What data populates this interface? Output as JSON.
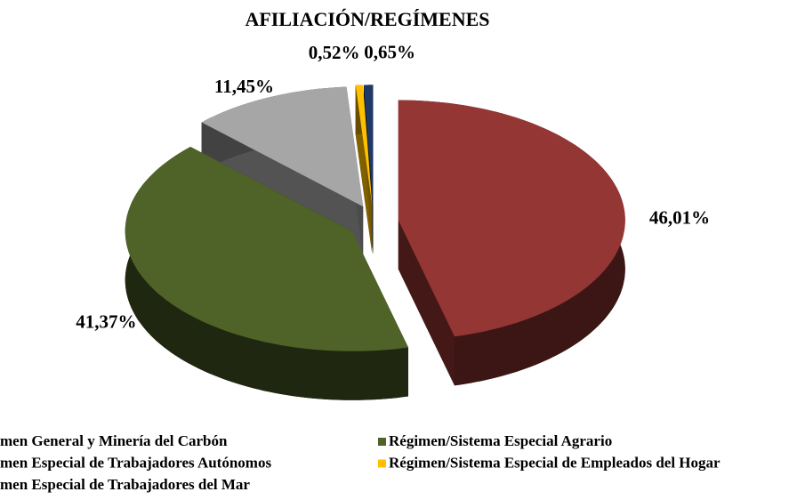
{
  "chart_data": {
    "type": "pie",
    "title": "AFILIACIÓN/REGÍMENES",
    "categories": [
      "men General y Minería del Carbón",
      "Régimen/Sistema Especial Agrario",
      "men Especial de Trabajadores Autónomos",
      "Régimen/Sistema Especial de Empleados del Hogar",
      "men Especial de Trabajadores del Mar"
    ],
    "values": [
      46.01,
      41.37,
      11.45,
      0.52,
      0.65
    ],
    "value_labels": [
      "46,01%",
      "41,37%",
      "11,45%",
      "0,52%",
      "0,65%"
    ],
    "colors": [
      "#943634",
      "#4f6228",
      "#a6a6a6",
      "#ffc000",
      "#1f3864"
    ]
  }
}
